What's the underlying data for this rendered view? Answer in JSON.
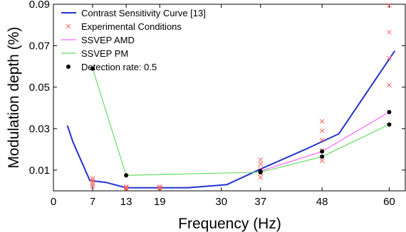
{
  "chart_data": {
    "type": "line",
    "xlabel": "Frequency (Hz)",
    "ylabel": "Modulation depth (%)",
    "xlim": [
      0,
      63
    ],
    "ylim": [
      0,
      0.09
    ],
    "xticks": [
      0,
      7,
      13,
      19,
      30,
      37,
      48,
      60
    ],
    "xtick_labels": [
      "0",
      "7",
      "13",
      "19",
      "30",
      "37",
      "48",
      "60"
    ],
    "yticks": [
      0.01,
      0.03,
      0.05,
      0.07,
      0.09
    ],
    "ytick_labels": [
      "0.01",
      "0.03",
      "0.05",
      "0.07",
      "0.09"
    ],
    "grid": false,
    "legend_position": "top-left",
    "colors": {
      "csf": "#2233cc",
      "experimental": "#ff6666",
      "amd": "#ff66ff",
      "pm": "#66dd66",
      "detection": "#000000"
    },
    "series": [
      {
        "name": "Contrast Sensitivity Curve [13]",
        "kind": "line",
        "color": "#2233cc",
        "x": [
          2.5,
          3.5,
          6.5,
          9.5,
          13,
          16,
          20,
          24,
          31,
          37,
          45,
          51,
          61
        ],
        "y": [
          0.0315,
          0.0235,
          0.005,
          0.004,
          0.0015,
          0.0015,
          0.0015,
          0.0015,
          0.003,
          0.0105,
          0.02,
          0.0275,
          0.0675
        ]
      },
      {
        "name": "Experimental Conditions",
        "kind": "scatter-x",
        "color": "#ff6666",
        "x": [
          7,
          7,
          7,
          7,
          7,
          13,
          13,
          13,
          13,
          19,
          19,
          19,
          37,
          37,
          37,
          37,
          37,
          48,
          48,
          48,
          48,
          48,
          60,
          60,
          60,
          60
        ],
        "y": [
          0.006,
          0.005,
          0.004,
          0.003,
          0.002,
          0.002,
          0.0015,
          0.0012,
          0.001,
          0.002,
          0.0015,
          0.001,
          0.015,
          0.013,
          0.0105,
          0.0085,
          0.0065,
          0.0335,
          0.029,
          0.0245,
          0.0195,
          0.0145,
          0.0895,
          0.0765,
          0.064,
          0.051
        ]
      },
      {
        "name": "SSVEP AMD",
        "kind": "line",
        "color": "#ff66ff",
        "x": [
          37,
          48,
          60
        ],
        "y": [
          0.0095,
          0.019,
          0.038
        ]
      },
      {
        "name": "SSVEP PM",
        "kind": "line",
        "color": "#66dd66",
        "x": [
          7,
          13,
          37,
          48,
          60
        ],
        "y": [
          0.059,
          0.0075,
          0.009,
          0.0165,
          0.032
        ]
      },
      {
        "name": "Detection rate: 0.5",
        "kind": "scatter-dot",
        "color": "#000000",
        "x": [
          7,
          13,
          37,
          37,
          48,
          48,
          60,
          60
        ],
        "y": [
          0.059,
          0.0075,
          0.0095,
          0.009,
          0.019,
          0.0165,
          0.038,
          0.032
        ]
      }
    ]
  }
}
